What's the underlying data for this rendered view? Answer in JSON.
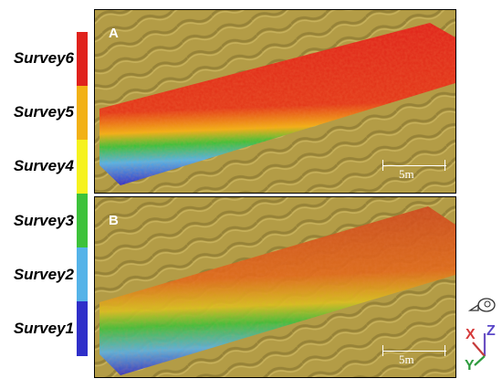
{
  "legend": {
    "items": [
      {
        "label": "Survey6",
        "color": "#e0221c"
      },
      {
        "label": "Survey5",
        "color": "#f2b115"
      },
      {
        "label": "Survey4",
        "color": "#f6f21e"
      },
      {
        "label": "Survey3",
        "color": "#3dc23a"
      },
      {
        "label": "Survey2",
        "color": "#55b3e8"
      },
      {
        "label": "Survey1",
        "color": "#2f2fc9"
      }
    ]
  },
  "panels": {
    "a": {
      "letter": "A",
      "scale_label": "5m"
    },
    "b": {
      "letter": "B",
      "scale_label": "5m"
    }
  },
  "axes": {
    "x": "X",
    "y": "Y",
    "z": "Z"
  },
  "colors": {
    "terrain": "#b09a45",
    "terrain_dark": "#7a6a2a",
    "frame": "#000000"
  }
}
